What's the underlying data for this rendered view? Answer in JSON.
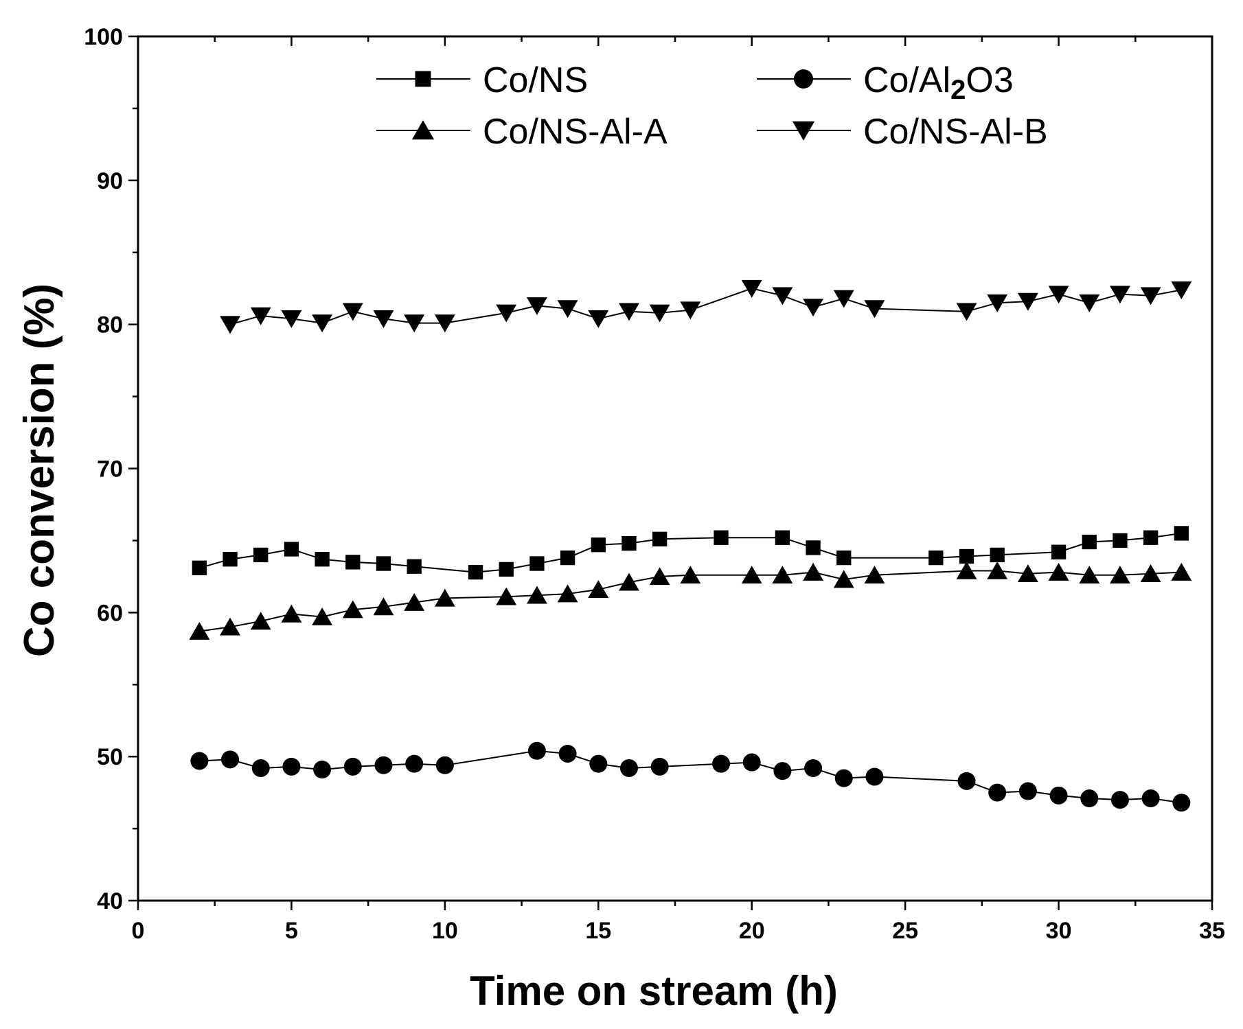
{
  "chart_data": {
    "type": "line",
    "xlabel": "Time on stream (h)",
    "ylabel": "Co conversion (%)",
    "xlim": [
      0,
      35
    ],
    "ylim": [
      40,
      100
    ],
    "xticks": [
      0,
      5,
      10,
      15,
      20,
      25,
      30,
      35
    ],
    "yticks": [
      40,
      50,
      60,
      70,
      80,
      90,
      100
    ],
    "grid": false,
    "legend_position": "top",
    "series": [
      {
        "name": "Co/NS",
        "label_main": "Co/NS",
        "label_sub": "",
        "label_tail": "",
        "marker": "square",
        "x": [
          2,
          3,
          4,
          5,
          6,
          7,
          8,
          9,
          11,
          12,
          13,
          14,
          15,
          16,
          17,
          19,
          21,
          22,
          23,
          26,
          27,
          28,
          30,
          31,
          32,
          33,
          34
        ],
        "y": [
          63.1,
          63.7,
          64.0,
          64.4,
          63.7,
          63.5,
          63.4,
          63.2,
          62.8,
          63.0,
          63.4,
          63.8,
          64.7,
          64.8,
          65.1,
          65.2,
          65.2,
          64.5,
          63.8,
          63.8,
          63.9,
          64.0,
          64.2,
          64.9,
          65.0,
          65.2,
          65.5
        ]
      },
      {
        "name": "Co/Al2O3",
        "label_main": "Co/Al",
        "label_sub": "2",
        "label_tail": "O3",
        "marker": "circle",
        "x": [
          2,
          3,
          4,
          5,
          6,
          7,
          8,
          9,
          10,
          13,
          14,
          15,
          16,
          17,
          19,
          20,
          21,
          22,
          23,
          24,
          27,
          28,
          29,
          30,
          31,
          32,
          33,
          34
        ],
        "y": [
          49.7,
          49.8,
          49.2,
          49.3,
          49.1,
          49.3,
          49.4,
          49.5,
          49.4,
          50.4,
          50.2,
          49.5,
          49.2,
          49.3,
          49.5,
          49.6,
          49.0,
          49.2,
          48.5,
          48.6,
          48.3,
          47.5,
          47.6,
          47.3,
          47.1,
          47.0,
          47.1,
          46.8
        ]
      },
      {
        "name": "Co/NS-Al-A",
        "label_main": "Co/NS-Al-A",
        "label_sub": "",
        "label_tail": "",
        "marker": "triangle-up",
        "x": [
          2,
          3,
          4,
          5,
          6,
          7,
          8,
          9,
          10,
          12,
          13,
          14,
          15,
          16,
          17,
          18,
          20,
          21,
          22,
          23,
          24,
          27,
          28,
          29,
          30,
          31,
          32,
          33,
          34
        ],
        "y": [
          58.7,
          59.0,
          59.4,
          59.9,
          59.7,
          60.2,
          60.4,
          60.7,
          61.0,
          61.1,
          61.2,
          61.3,
          61.6,
          62.1,
          62.5,
          62.6,
          62.6,
          62.6,
          62.8,
          62.3,
          62.6,
          62.9,
          62.9,
          62.7,
          62.8,
          62.6,
          62.6,
          62.7,
          62.8
        ]
      },
      {
        "name": "Co/NS-Al-B",
        "label_main": "Co/NS-Al-B",
        "label_sub": "",
        "label_tail": "",
        "marker": "triangle-down",
        "x": [
          3,
          4,
          5,
          6,
          7,
          8,
          9,
          10,
          12,
          13,
          14,
          15,
          16,
          17,
          18,
          20,
          21,
          22,
          23,
          24,
          27,
          28,
          29,
          30,
          31,
          32,
          33,
          34
        ],
        "y": [
          80.0,
          80.6,
          80.4,
          80.1,
          80.9,
          80.4,
          80.1,
          80.1,
          80.8,
          81.3,
          81.1,
          80.4,
          80.9,
          80.8,
          81.0,
          82.5,
          82.0,
          81.2,
          81.8,
          81.1,
          80.9,
          81.5,
          81.6,
          82.1,
          81.5,
          82.1,
          82.0,
          82.4
        ]
      }
    ]
  }
}
